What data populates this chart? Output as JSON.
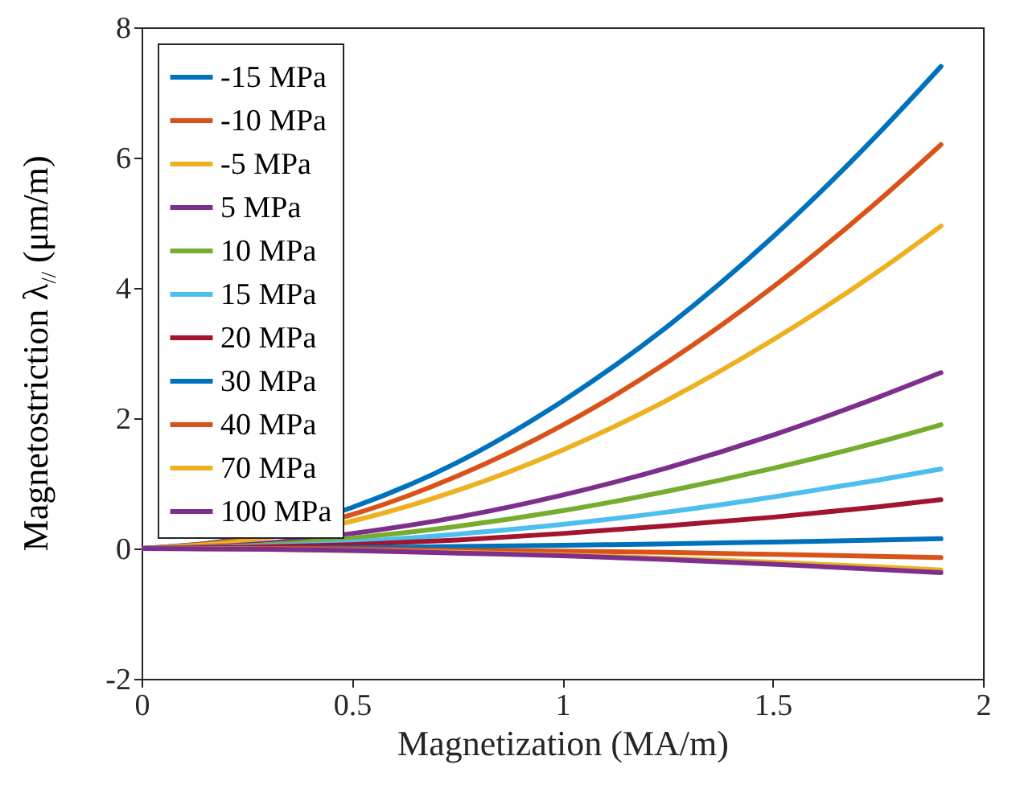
{
  "chart_data": {
    "type": "line",
    "xlabel": "Magnetization (MA/m)",
    "ylabel": "Magnetostriction λ$_{//}$ (μm/m)",
    "x": [
      0,
      0.25,
      0.5,
      0.75,
      1,
      1.25,
      1.5,
      1.75,
      1.9
    ],
    "xlim": [
      0,
      2
    ],
    "xticks": [
      0,
      0.5,
      1,
      1.5,
      2
    ],
    "ylim": [
      -2,
      8
    ],
    "yticks": [
      -2,
      0,
      2,
      4,
      6,
      8
    ],
    "grid": false,
    "legend": "top left",
    "marker": "none",
    "line_style": "solid",
    "series": [
      {
        "name": "-15 MPa",
        "color": "#0072bd",
        "values": [
          0,
          0.17,
          0.63,
          1.32,
          2.26,
          3.41,
          4.78,
          6.36,
          7.4
        ]
      },
      {
        "name": "-10 MPa",
        "color": "#d95319",
        "values": [
          0,
          0.15,
          0.52,
          1.11,
          1.89,
          2.86,
          4.01,
          5.33,
          6.2
        ]
      },
      {
        "name": "-5 MPa",
        "color": "#edb120",
        "values": [
          0,
          0.12,
          0.42,
          0.89,
          1.51,
          2.28,
          3.2,
          4.25,
          4.95
        ]
      },
      {
        "name": "5 MPa",
        "color": "#7e2f8e",
        "values": [
          0,
          0.06,
          0.23,
          0.48,
          0.82,
          1.24,
          1.74,
          2.32,
          2.7
        ]
      },
      {
        "name": "10 MPa",
        "color": "#77ac30",
        "values": [
          0,
          0.04,
          0.16,
          0.34,
          0.58,
          0.88,
          1.23,
          1.63,
          1.9
        ]
      },
      {
        "name": "15 MPa",
        "color": "#4dbeee",
        "values": [
          0,
          0.03,
          0.1,
          0.22,
          0.37,
          0.56,
          0.79,
          1.05,
          1.22
        ]
      },
      {
        "name": "20 MPa",
        "color": "#a2142f",
        "values": [
          0,
          0.02,
          0.06,
          0.13,
          0.23,
          0.35,
          0.48,
          0.64,
          0.75
        ]
      },
      {
        "name": "30 MPa",
        "color": "#0072bd",
        "values": [
          0,
          0,
          0.01,
          0.03,
          0.05,
          0.07,
          0.1,
          0.13,
          0.15
        ]
      },
      {
        "name": "40 MPa",
        "color": "#d95319",
        "values": [
          0,
          0,
          -0.01,
          -0.03,
          -0.04,
          -0.06,
          -0.09,
          -0.12,
          -0.14
        ]
      },
      {
        "name": "70 MPa",
        "color": "#edb120",
        "values": [
          0,
          -0.01,
          -0.03,
          -0.06,
          -0.1,
          -0.15,
          -0.21,
          -0.28,
          -0.33
        ]
      },
      {
        "name": "100 MPa",
        "color": "#7e2f8e",
        "values": [
          0,
          -0.01,
          -0.03,
          -0.07,
          -0.11,
          -0.17,
          -0.24,
          -0.32,
          -0.37
        ]
      }
    ]
  }
}
